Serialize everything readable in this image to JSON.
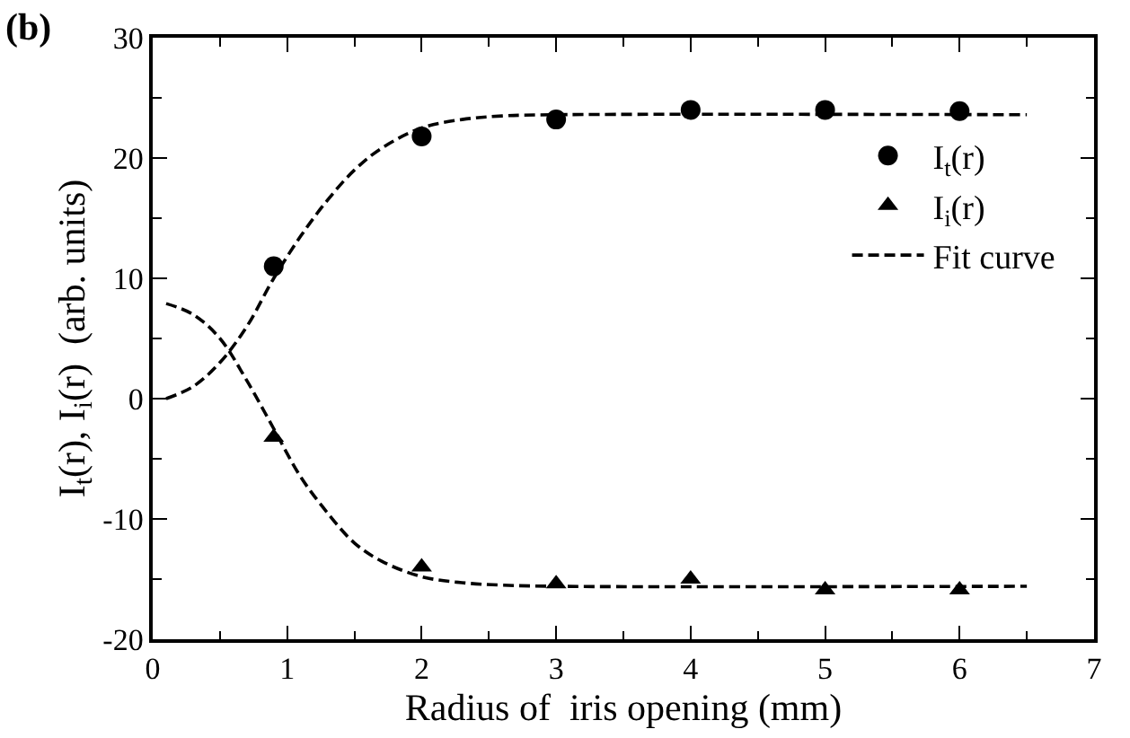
{
  "chart_data": {
    "type": "scatter",
    "xlabel": "Radius of  iris opening (mm)",
    "ylabel": "I$_{t}$(r), I$_{i}$(r)  (arb. units)",
    "annotations": [
      "(b)"
    ],
    "xlim": [
      0,
      7
    ],
    "xticks": [
      0,
      1,
      2,
      3,
      4,
      5,
      6,
      7
    ],
    "ylim": [
      -20,
      30
    ],
    "yticks": [
      -20,
      -10,
      0,
      10,
      20,
      30
    ],
    "grid": false,
    "legend": "right",
    "series": [
      {
        "name": "I$_{t}$(r)",
        "marker": "circle",
        "color": "#000000",
        "x": [
          0.9,
          2,
          3,
          4,
          5,
          6
        ],
        "values": [
          11,
          21.8,
          23.2,
          24,
          24,
          23.9
        ]
      },
      {
        "name": "I$_{i}$(r)",
        "marker": "triangle",
        "color": "#000000",
        "x": [
          0.9,
          2,
          3,
          4,
          5,
          6
        ],
        "values": [
          -3.2,
          -14,
          -15.4,
          -15,
          -15.9,
          -15.9
        ]
      },
      {
        "name": "Fit curve",
        "type": "line",
        "line_style": "dashed",
        "marker": "none",
        "color": "#000000",
        "x": [
          0.1,
          0.3,
          0.5,
          0.7,
          0.9,
          1.1,
          1.3,
          1.5,
          1.7,
          2.0,
          2.3,
          2.6,
          3.0,
          6.5
        ],
        "values": [
          0,
          1,
          3,
          6,
          10,
          13.5,
          16.5,
          19,
          20.8,
          22.5,
          23.2,
          23.5,
          23.6,
          23.6
        ]
      },
      {
        "type": "line",
        "line_style": "dashed",
        "marker": "none",
        "color": "#000000",
        "x": [
          0.1,
          0.3,
          0.5,
          0.7,
          0.9,
          1.1,
          1.3,
          1.5,
          1.7,
          2.0,
          2.3,
          2.6,
          3.0,
          6.5
        ],
        "values": [
          7.9,
          7,
          5,
          1.5,
          -2.5,
          -6.5,
          -9.5,
          -12,
          -13.5,
          -14.8,
          -15.3,
          -15.5,
          -15.6,
          -15.6
        ]
      }
    ]
  }
}
